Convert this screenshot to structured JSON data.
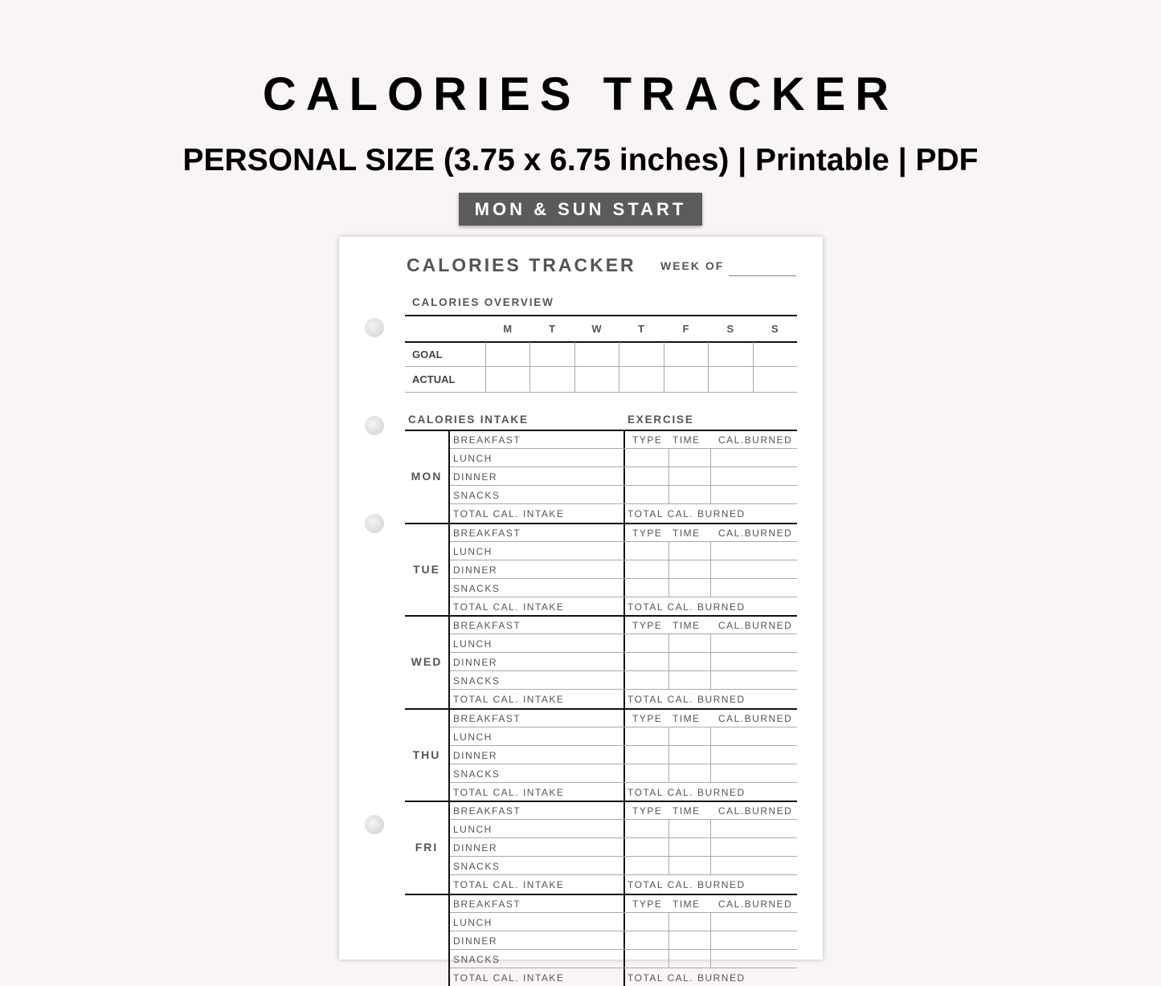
{
  "header": {
    "title": "CALORIES TRACKER",
    "subtitle": "PERSONAL SIZE (3.75 x 6.75 inches) | Printable | PDF",
    "badge": "MON & SUN START"
  },
  "sheet": {
    "title": "CALORIES TRACKER",
    "week_of": "WEEK OF",
    "overview": {
      "label": "CALORIES OVERVIEW",
      "days": [
        "M",
        "T",
        "W",
        "T",
        "F",
        "S",
        "S"
      ],
      "rows": [
        "GOAL",
        "ACTUAL"
      ]
    },
    "intake_label": "CALORIES INTAKE",
    "exercise_label": "EXERCISE",
    "meals": [
      "BREAKFAST",
      "LUNCH",
      "DINNER",
      "SNACKS"
    ],
    "total_intake": "TOTAL CAL. INTAKE",
    "exercise_cols": [
      "TYPE",
      "TIME",
      "CAL.BURNED"
    ],
    "total_burned": "TOTAL CAL. BURNED",
    "days": [
      "MON",
      "TUE",
      "WED",
      "THU",
      "FRI",
      ""
    ]
  }
}
